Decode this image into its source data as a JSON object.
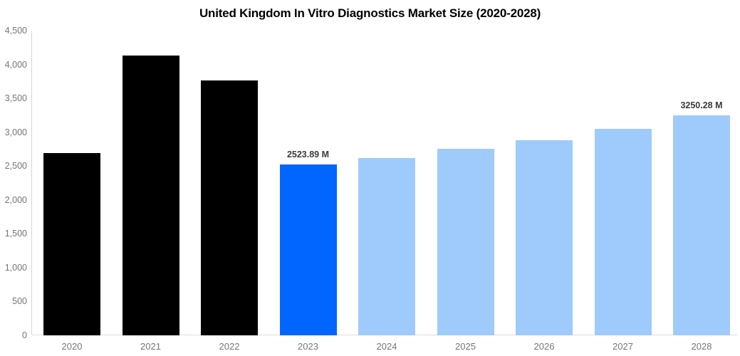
{
  "title": "United Kingdom In Vitro Diagnostics Market Size (2020-2028)",
  "colors": {
    "historical_bar": "#000000",
    "highlight_bar": "#0066ff",
    "forecast_bar": "#9ecbfb",
    "axis_text": "#757575",
    "data_label_text": "#3b3b3b",
    "axis_line": "#d6d6d6"
  },
  "chart_data": {
    "type": "bar",
    "title": "United Kingdom In Vitro Diagnostics Market Size (2020-2028)",
    "categories": [
      "2020",
      "2021",
      "2022",
      "2023",
      "2024",
      "2025",
      "2026",
      "2027",
      "2028"
    ],
    "values": [
      2690,
      4130,
      3765,
      2523.89,
      2618,
      2755,
      2881,
      3049,
      3250.28
    ],
    "unit": "M",
    "point_labels": [
      "",
      "",
      "",
      "2523.89 M",
      "",
      "",
      "",
      "",
      "3250.28 M"
    ],
    "bar_colors": [
      "#000000",
      "#000000",
      "#000000",
      "#0066ff",
      "#9ecbfb",
      "#9ecbfb",
      "#9ecbfb",
      "#9ecbfb",
      "#9ecbfb"
    ],
    "xlabel": "",
    "ylabel": "",
    "ylim": [
      0,
      4500
    ],
    "ytick_labels": [
      "0",
      "500",
      "1,000",
      "1,500",
      "2,000",
      "2,500",
      "3,000",
      "3,500",
      "4,000",
      "4,500"
    ],
    "grid": false,
    "legend": "none"
  }
}
